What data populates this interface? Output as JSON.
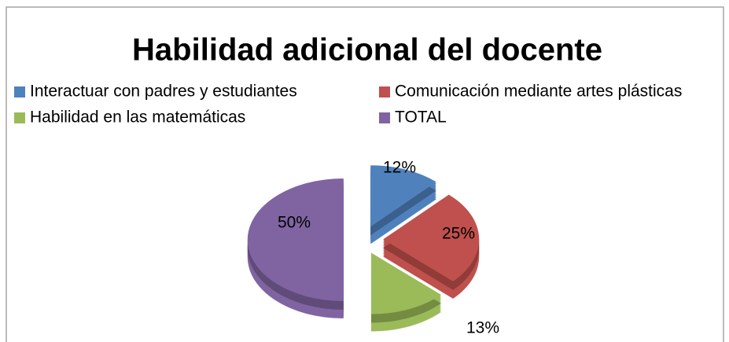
{
  "chart_data": {
    "type": "pie",
    "title": "Habilidad adicional del docente",
    "categories": [
      "Interactuar con padres y estudiantes",
      "Comunicación mediante artes plásticas",
      "Habilidad en las matemáticas",
      "TOTAL"
    ],
    "values": [
      12,
      25,
      13,
      50
    ],
    "value_labels": [
      "12%",
      "25%",
      "13%",
      "50%"
    ],
    "colors": [
      "#4f81bd",
      "#c0504d",
      "#9bbb59",
      "#8064a2"
    ],
    "legend": "top"
  }
}
